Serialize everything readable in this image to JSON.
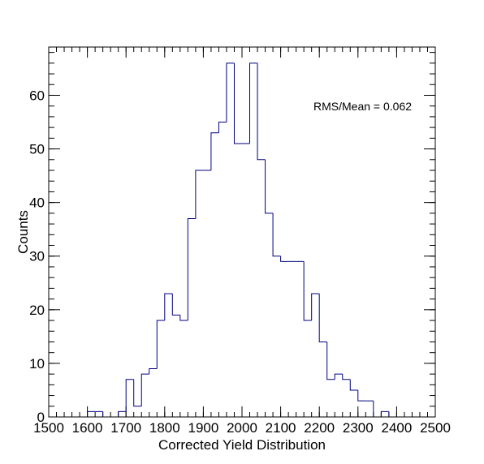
{
  "chart_data": {
    "type": "histogram",
    "xlabel": "Corrected Yield Distribution",
    "ylabel": "Counts",
    "xlim": [
      1500,
      2500
    ],
    "ylim": [
      0,
      69
    ],
    "bin_width": 20,
    "annotation": "RMS/Mean = 0.062",
    "grid": false,
    "legend": "none",
    "line_color": "#000080",
    "x_ticks": [
      1500,
      1600,
      1700,
      1800,
      1900,
      2000,
      2100,
      2200,
      2300,
      2400,
      2500
    ],
    "x_tick_labels": [
      "1500",
      "1600",
      "1700",
      "1800",
      "1900",
      "2000",
      "2100",
      "2200",
      "2300",
      "2400",
      "2500"
    ],
    "y_ticks": [
      0,
      10,
      20,
      30,
      40,
      50,
      60
    ],
    "y_tick_labels": [
      "0",
      "10",
      "20",
      "30",
      "40",
      "50",
      "60"
    ],
    "bins": [
      {
        "x0": 1600,
        "count": 1
      },
      {
        "x0": 1620,
        "count": 1
      },
      {
        "x0": 1640,
        "count": 0
      },
      {
        "x0": 1660,
        "count": 0
      },
      {
        "x0": 1680,
        "count": 1
      },
      {
        "x0": 1700,
        "count": 7
      },
      {
        "x0": 1720,
        "count": 2
      },
      {
        "x0": 1740,
        "count": 8
      },
      {
        "x0": 1760,
        "count": 9
      },
      {
        "x0": 1780,
        "count": 18
      },
      {
        "x0": 1800,
        "count": 23
      },
      {
        "x0": 1820,
        "count": 19
      },
      {
        "x0": 1840,
        "count": 18
      },
      {
        "x0": 1860,
        "count": 37
      },
      {
        "x0": 1880,
        "count": 46
      },
      {
        "x0": 1900,
        "count": 46
      },
      {
        "x0": 1920,
        "count": 53
      },
      {
        "x0": 1940,
        "count": 55
      },
      {
        "x0": 1960,
        "count": 66
      },
      {
        "x0": 1980,
        "count": 51
      },
      {
        "x0": 2000,
        "count": 51
      },
      {
        "x0": 2020,
        "count": 66
      },
      {
        "x0": 2040,
        "count": 48
      },
      {
        "x0": 2060,
        "count": 38
      },
      {
        "x0": 2080,
        "count": 30
      },
      {
        "x0": 2100,
        "count": 29
      },
      {
        "x0": 2120,
        "count": 29
      },
      {
        "x0": 2140,
        "count": 29
      },
      {
        "x0": 2160,
        "count": 18
      },
      {
        "x0": 2180,
        "count": 23
      },
      {
        "x0": 2200,
        "count": 14
      },
      {
        "x0": 2220,
        "count": 7
      },
      {
        "x0": 2240,
        "count": 8
      },
      {
        "x0": 2260,
        "count": 7
      },
      {
        "x0": 2280,
        "count": 5
      },
      {
        "x0": 2300,
        "count": 3
      },
      {
        "x0": 2320,
        "count": 3
      },
      {
        "x0": 2340,
        "count": 0
      },
      {
        "x0": 2360,
        "count": 1
      },
      {
        "x0": 2380,
        "count": 0
      }
    ]
  }
}
